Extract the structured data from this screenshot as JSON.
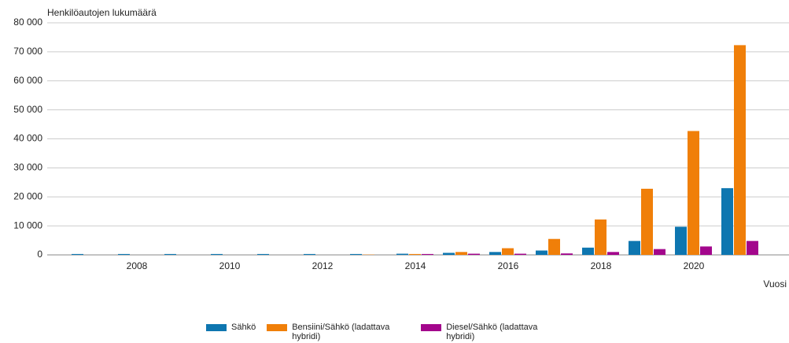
{
  "chart_data": {
    "type": "bar",
    "ylabel": "Henkilöautojen lukumäärä",
    "xlabel": "Vuosi",
    "categories": [
      null,
      "2008",
      null,
      "2010",
      null,
      "2012",
      null,
      "2014",
      null,
      "2016",
      null,
      "2018",
      null,
      "2020",
      null
    ],
    "series": [
      {
        "name": "Sähkö",
        "color": "#0e76b0",
        "values": [
          300,
          300,
          300,
          300,
          300,
          300,
          300,
          400,
          700,
          1000,
          1500,
          2500,
          4800,
          9700,
          23000
        ]
      },
      {
        "name": "Bensiini/Sähkö (ladattava hybridi)",
        "color": "#f07f09",
        "values": [
          0,
          0,
          0,
          0,
          0,
          0,
          100,
          300,
          1000,
          2300,
          5500,
          12200,
          22800,
          42700,
          72300
        ]
      },
      {
        "name": "Diesel/Sähkö (ladattava hybridi)",
        "color": "#a3068c",
        "values": [
          0,
          0,
          0,
          0,
          0,
          0,
          0,
          300,
          400,
          400,
          500,
          1000,
          2000,
          2900,
          4800
        ]
      }
    ],
    "ylim": [
      0,
      80000
    ],
    "yticks": [
      0,
      {
        "value": 10000,
        "label": "10 000"
      },
      {
        "value": 20000,
        "label": "20 000"
      },
      {
        "value": 30000,
        "label": "30 000"
      },
      {
        "value": 40000,
        "label": "40 000"
      },
      {
        "value": 50000,
        "label": "50 000"
      },
      {
        "value": 60000,
        "label": "60 000"
      },
      {
        "value": 70000,
        "label": "70 000"
      },
      {
        "value": 80000,
        "label": "80 000"
      }
    ],
    "grid": true,
    "legend": "bottom"
  }
}
